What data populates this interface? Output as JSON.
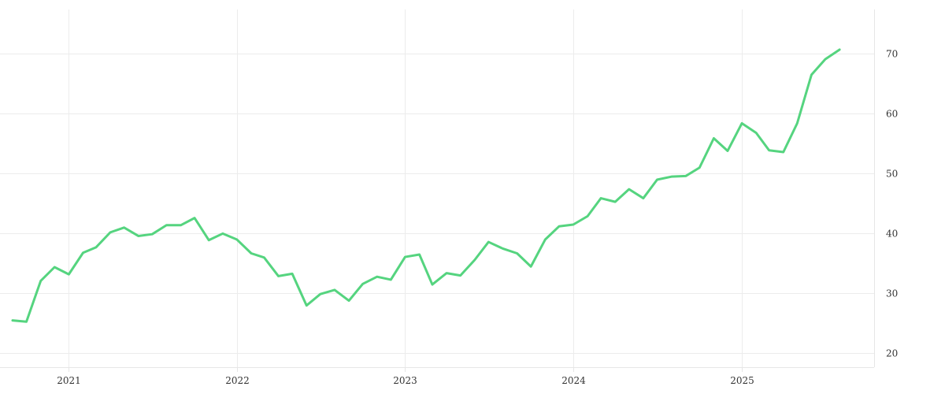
{
  "chart_data": {
    "type": "line",
    "title": "",
    "xlabel": "",
    "ylabel": "",
    "x_ticks": [
      "2021",
      "2022",
      "2023",
      "2024",
      "2025"
    ],
    "y_ticks": [
      20,
      30,
      40,
      50,
      60,
      70
    ],
    "xlim": [
      "2020-09-01",
      "2025-10-15"
    ],
    "ylim": [
      17.6,
      77.3
    ],
    "grid": true,
    "y_axis_position": "right",
    "legend": "none",
    "series": [
      {
        "color": "#55d47f",
        "points": [
          [
            "2020-09-01",
            25.4
          ],
          [
            "2020-10-01",
            25.2
          ],
          [
            "2020-11-01",
            32.0
          ],
          [
            "2020-12-01",
            34.3
          ],
          [
            "2021-01-01",
            33.1
          ],
          [
            "2021-02-01",
            36.7
          ],
          [
            "2021-03-01",
            37.6
          ],
          [
            "2021-04-01",
            40.1
          ],
          [
            "2021-05-01",
            40.9
          ],
          [
            "2021-06-01",
            39.5
          ],
          [
            "2021-07-01",
            39.8
          ],
          [
            "2021-08-01",
            41.3
          ],
          [
            "2021-09-01",
            41.3
          ],
          [
            "2021-10-01",
            42.5
          ],
          [
            "2021-11-01",
            38.8
          ],
          [
            "2021-12-01",
            39.9
          ],
          [
            "2022-01-01",
            38.9
          ],
          [
            "2022-02-01",
            36.6
          ],
          [
            "2022-03-01",
            35.9
          ],
          [
            "2022-04-01",
            32.8
          ],
          [
            "2022-05-01",
            33.2
          ],
          [
            "2022-06-01",
            27.9
          ],
          [
            "2022-07-01",
            29.8
          ],
          [
            "2022-08-01",
            30.5
          ],
          [
            "2022-09-01",
            28.7
          ],
          [
            "2022-10-01",
            31.5
          ],
          [
            "2022-11-01",
            32.7
          ],
          [
            "2022-12-01",
            32.2
          ],
          [
            "2023-01-01",
            36.0
          ],
          [
            "2023-02-01",
            36.4
          ],
          [
            "2023-03-01",
            31.4
          ],
          [
            "2023-04-01",
            33.3
          ],
          [
            "2023-05-01",
            32.9
          ],
          [
            "2023-06-01",
            35.5
          ],
          [
            "2023-07-01",
            38.5
          ],
          [
            "2023-08-01",
            37.4
          ],
          [
            "2023-09-01",
            36.6
          ],
          [
            "2023-10-01",
            34.4
          ],
          [
            "2023-11-01",
            38.9
          ],
          [
            "2023-12-01",
            41.1
          ],
          [
            "2024-01-01",
            41.4
          ],
          [
            "2024-02-01",
            42.8
          ],
          [
            "2024-03-01",
            45.8
          ],
          [
            "2024-04-01",
            45.2
          ],
          [
            "2024-05-01",
            47.3
          ],
          [
            "2024-06-01",
            45.8
          ],
          [
            "2024-07-01",
            48.9
          ],
          [
            "2024-08-01",
            49.4
          ],
          [
            "2024-09-01",
            49.5
          ],
          [
            "2024-10-01",
            50.9
          ],
          [
            "2024-11-01",
            55.8
          ],
          [
            "2024-12-01",
            53.7
          ],
          [
            "2025-01-01",
            58.3
          ],
          [
            "2025-02-01",
            56.7
          ],
          [
            "2025-03-01",
            53.8
          ],
          [
            "2025-04-01",
            53.5
          ],
          [
            "2025-05-01",
            58.3
          ],
          [
            "2025-06-01",
            66.4
          ],
          [
            "2025-07-01",
            69.0
          ],
          [
            "2025-08-01",
            70.6
          ]
        ]
      }
    ]
  }
}
